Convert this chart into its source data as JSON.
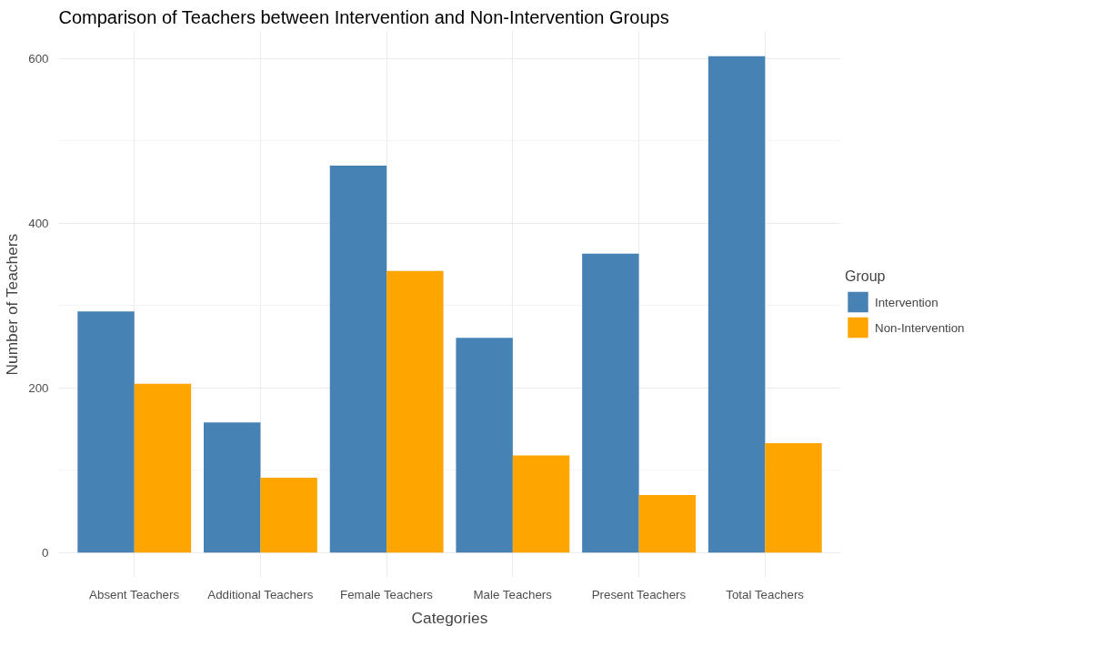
{
  "chart_data": {
    "type": "bar",
    "title": "Comparison of Teachers between Intervention and Non-Intervention Groups",
    "xlabel": "Categories",
    "ylabel": "Number of Teachers",
    "legend_title": "Group",
    "categories": [
      "Absent Teachers",
      "Additional Teachers",
      "Female Teachers",
      "Male Teachers",
      "Present Teachers",
      "Total Teachers"
    ],
    "series": [
      {
        "name": "Intervention",
        "color": "#4682b4",
        "values": [
          293,
          158,
          470,
          261,
          363,
          603
        ]
      },
      {
        "name": "Non-Intervention",
        "color": "#ffa500",
        "values": [
          205,
          91,
          342,
          118,
          70,
          133
        ]
      }
    ],
    "ylim": [
      -30,
      633
    ],
    "yticks": [
      0,
      200,
      400,
      600
    ],
    "grid": true,
    "legend": "right"
  }
}
